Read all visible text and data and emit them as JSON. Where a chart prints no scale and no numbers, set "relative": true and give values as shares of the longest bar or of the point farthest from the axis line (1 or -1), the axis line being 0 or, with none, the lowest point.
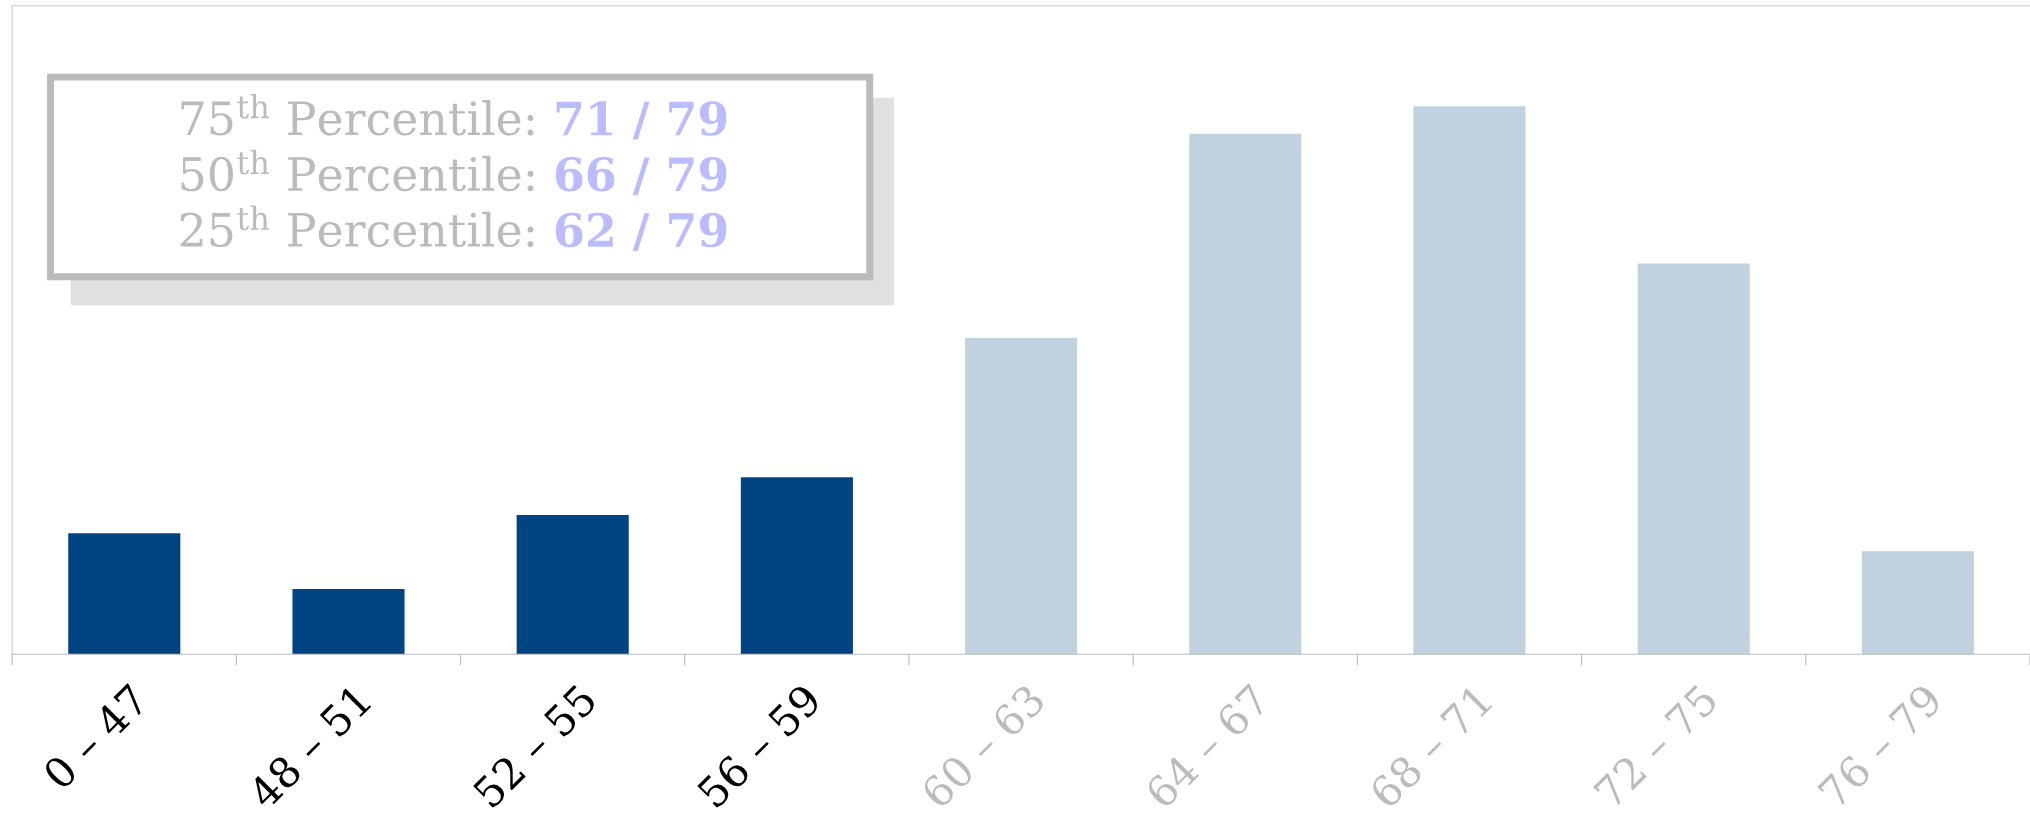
{
  "chart_data": {
    "type": "bar",
    "relative": true,
    "categories": [
      "0 – 47",
      "48 – 51",
      "52 – 55",
      "56 – 59",
      "60 – 63",
      "64 – 67",
      "68 – 71",
      "72 – 75",
      "76 – 79"
    ],
    "values": [
      0.221,
      0.119,
      0.254,
      0.323,
      0.577,
      0.95,
      1,
      0.713,
      0.188
    ],
    "colors": [
      "#004483",
      "#004483",
      "#004483",
      "#004483",
      "#c0d1e0",
      "#c0d1e0",
      "#c0d1e0",
      "#c0d1e0",
      "#c0d1e0"
    ],
    "annotations": [
      "75$^{th}$ Percentile: 71 / 79",
      "50$^{th}$ Percentile: 66 / 79",
      "25$^{th}$ Percentile: 62 / 79"
    ],
    "grid": false
  }
}
